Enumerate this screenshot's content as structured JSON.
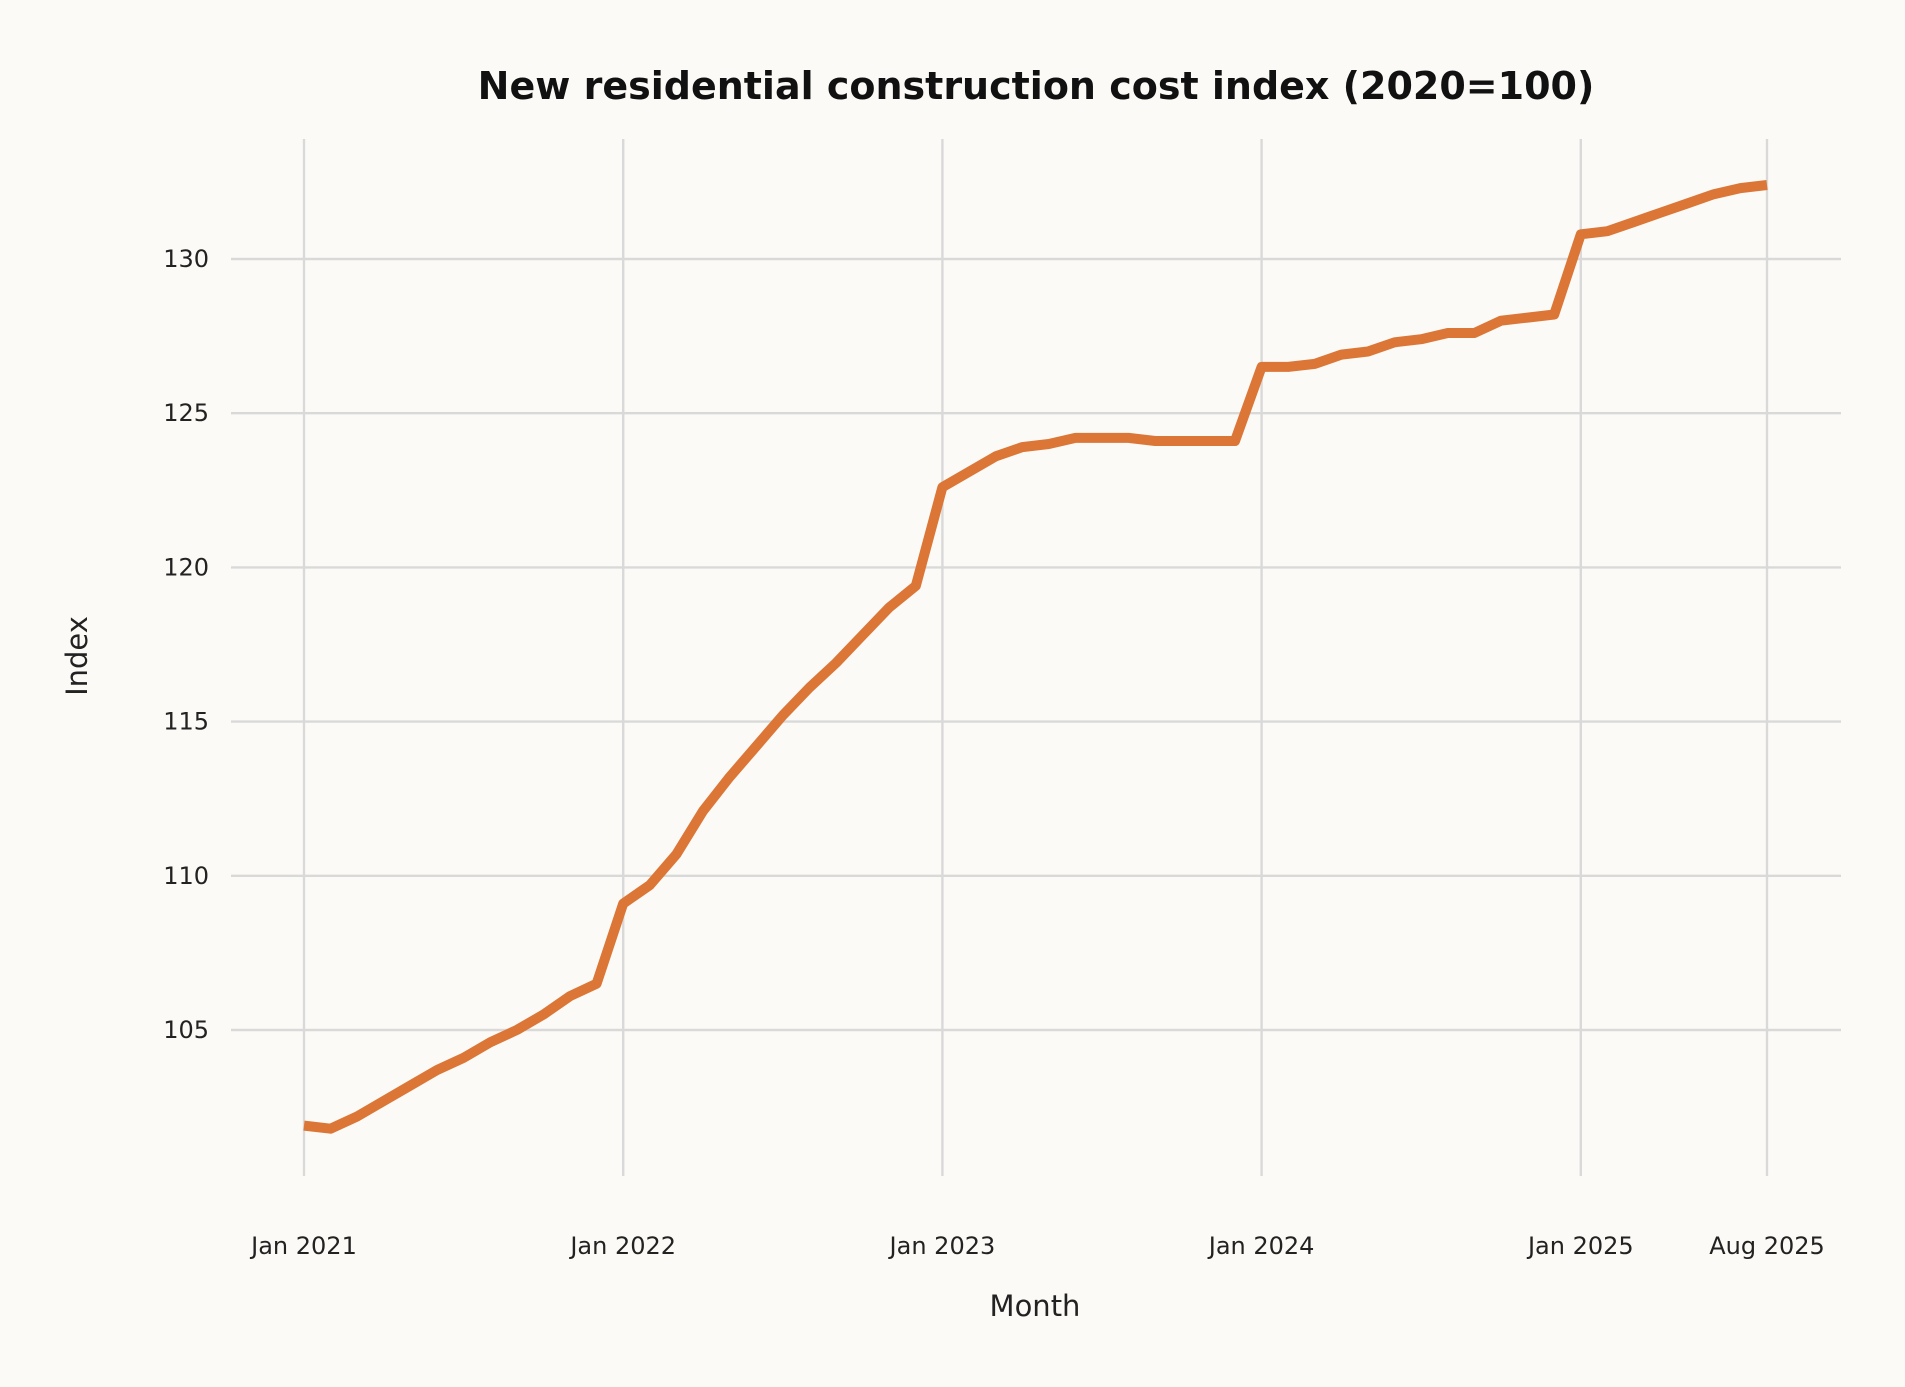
{
  "chart_data": {
    "type": "line",
    "title": "New residential construction cost index (2020=100)",
    "xlabel": "Month",
    "ylabel": "Index",
    "x_tick_labels": [
      "Jan 2021",
      "Jan 2022",
      "Jan 2023",
      "Jan 2024",
      "Jan 2025",
      "Aug 2025"
    ],
    "y_ticks": [
      105,
      110,
      115,
      120,
      125,
      130
    ],
    "ylim": [
      100.5,
      134
    ],
    "xlim": [
      "2020-12",
      "2025-10"
    ],
    "grid": true,
    "line_color": "#db7637",
    "x": [
      "2021-01",
      "2021-02",
      "2021-03",
      "2021-04",
      "2021-05",
      "2021-06",
      "2021-07",
      "2021-08",
      "2021-09",
      "2021-10",
      "2021-11",
      "2021-12",
      "2022-01",
      "2022-02",
      "2022-03",
      "2022-04",
      "2022-05",
      "2022-06",
      "2022-07",
      "2022-08",
      "2022-09",
      "2022-10",
      "2022-11",
      "2022-12",
      "2023-01",
      "2023-02",
      "2023-03",
      "2023-04",
      "2023-05",
      "2023-06",
      "2023-07",
      "2023-08",
      "2023-09",
      "2023-10",
      "2023-11",
      "2023-12",
      "2024-01",
      "2024-02",
      "2024-03",
      "2024-04",
      "2024-05",
      "2024-06",
      "2024-07",
      "2024-08",
      "2024-09",
      "2024-10",
      "2024-11",
      "2024-12",
      "2025-01",
      "2025-02",
      "2025-03",
      "2025-04",
      "2025-05",
      "2025-06",
      "2025-07",
      "2025-08"
    ],
    "values": [
      101.9,
      101.8,
      102.2,
      102.7,
      103.2,
      103.7,
      104.1,
      104.6,
      105.0,
      105.5,
      106.1,
      106.5,
      109.1,
      109.7,
      110.7,
      112.1,
      113.2,
      114.2,
      115.2,
      116.1,
      116.9,
      117.8,
      118.7,
      119.4,
      122.6,
      123.1,
      123.6,
      123.9,
      124.0,
      124.2,
      124.2,
      124.2,
      124.1,
      124.1,
      124.1,
      124.1,
      126.5,
      126.5,
      126.6,
      126.9,
      127.0,
      127.3,
      127.4,
      127.6,
      127.6,
      128.0,
      128.1,
      128.2,
      130.8,
      130.9,
      131.2,
      131.5,
      131.8,
      132.1,
      132.3,
      132.4
    ]
  }
}
